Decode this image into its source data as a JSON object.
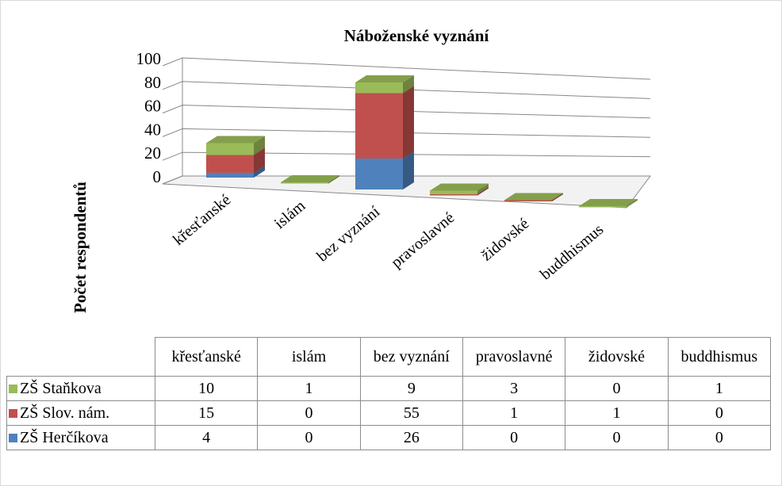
{
  "chart_data": {
    "type": "bar3d_stacked",
    "title": "Náboženské vyznání",
    "y_label": "Počet respondentů",
    "categories": [
      "křesťanské",
      "islám",
      "bez vyznání",
      "pravoslavné",
      "židovské",
      "buddhismus"
    ],
    "series": [
      {
        "name": "ZŠ Staňkova",
        "color": "#9bbb59",
        "values": [
          10,
          1,
          9,
          3,
          0,
          1
        ]
      },
      {
        "name": "ZŠ Slov. nám.",
        "color": "#c0504d",
        "values": [
          15,
          0,
          55,
          1,
          1,
          0
        ]
      },
      {
        "name": "ZŠ Herčíkova",
        "color": "#4f81bd",
        "values": [
          4,
          0,
          26,
          0,
          0,
          0
        ]
      }
    ],
    "ylim": [
      0,
      100
    ],
    "yticks": [
      0,
      20,
      40,
      60,
      80,
      100
    ],
    "grid": true,
    "data_table": true
  }
}
